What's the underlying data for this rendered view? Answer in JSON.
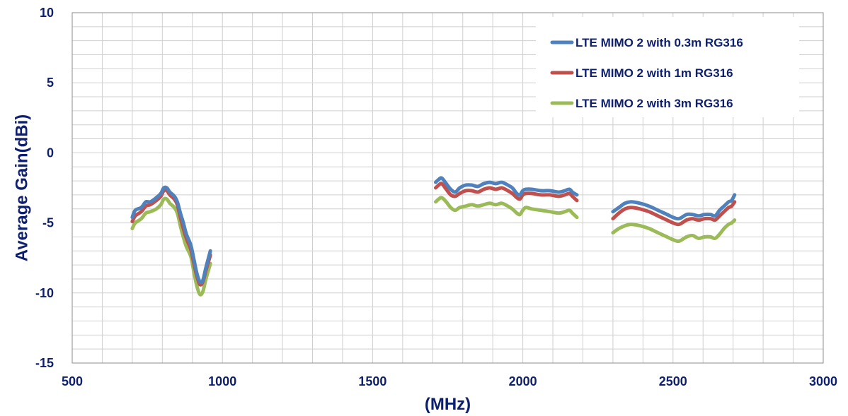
{
  "chart_data": {
    "type": "line",
    "xlabel": "(MHz)",
    "ylabel": "Average Gain(dBi)",
    "xlim": [
      500,
      3000
    ],
    "ylim": [
      -15,
      10
    ],
    "x_ticks": [
      500,
      1000,
      1500,
      2000,
      2500,
      3000
    ],
    "y_ticks": [
      -15,
      -10,
      -5,
      0,
      5,
      10
    ],
    "x_minor_step": 100,
    "y_minor_step": 1,
    "grid": true,
    "legend_position": "top-right",
    "series": [
      {
        "name": "LTE MIMO 2 with 0.3m RG316",
        "color": "#4f81bd",
        "segments": [
          [
            [
              700,
              -4.6
            ],
            [
              710,
              -4.1
            ],
            [
              730,
              -3.9
            ],
            [
              745,
              -3.5
            ],
            [
              760,
              -3.5
            ],
            [
              780,
              -3.2
            ],
            [
              795,
              -2.9
            ],
            [
              805,
              -2.5
            ],
            [
              815,
              -2.5
            ],
            [
              825,
              -2.8
            ],
            [
              840,
              -3.1
            ],
            [
              850,
              -3.5
            ],
            [
              860,
              -4.3
            ],
            [
              870,
              -5.0
            ],
            [
              880,
              -5.8
            ],
            [
              895,
              -6.6
            ],
            [
              905,
              -7.6
            ],
            [
              915,
              -8.6
            ],
            [
              925,
              -9.2
            ],
            [
              935,
              -9.1
            ],
            [
              945,
              -8.2
            ],
            [
              960,
              -7.0
            ]
          ],
          [
            [
              1710,
              -2.1
            ],
            [
              1720,
              -1.9
            ],
            [
              1730,
              -1.8
            ],
            [
              1745,
              -2.2
            ],
            [
              1760,
              -2.6
            ],
            [
              1775,
              -2.8
            ],
            [
              1790,
              -2.5
            ],
            [
              1810,
              -2.3
            ],
            [
              1830,
              -2.3
            ],
            [
              1850,
              -2.4
            ],
            [
              1870,
              -2.2
            ],
            [
              1890,
              -2.1
            ],
            [
              1910,
              -2.2
            ],
            [
              1930,
              -2.1
            ],
            [
              1950,
              -2.3
            ],
            [
              1965,
              -2.5
            ],
            [
              1980,
              -2.9
            ],
            [
              1990,
              -3.0
            ],
            [
              2000,
              -2.7
            ],
            [
              2010,
              -2.6
            ],
            [
              2030,
              -2.6
            ],
            [
              2060,
              -2.7
            ],
            [
              2090,
              -2.7
            ],
            [
              2120,
              -2.8
            ],
            [
              2140,
              -2.7
            ],
            [
              2155,
              -2.6
            ],
            [
              2165,
              -2.8
            ],
            [
              2180,
              -3.0
            ]
          ],
          [
            [
              2300,
              -4.2
            ],
            [
              2320,
              -3.9
            ],
            [
              2340,
              -3.6
            ],
            [
              2360,
              -3.5
            ],
            [
              2390,
              -3.6
            ],
            [
              2420,
              -3.8
            ],
            [
              2450,
              -4.1
            ],
            [
              2480,
              -4.4
            ],
            [
              2500,
              -4.6
            ],
            [
              2520,
              -4.7
            ],
            [
              2545,
              -4.4
            ],
            [
              2565,
              -4.4
            ],
            [
              2585,
              -4.5
            ],
            [
              2605,
              -4.4
            ],
            [
              2625,
              -4.4
            ],
            [
              2640,
              -4.5
            ],
            [
              2655,
              -4.1
            ],
            [
              2670,
              -3.8
            ],
            [
              2685,
              -3.5
            ],
            [
              2695,
              -3.4
            ],
            [
              2705,
              -3.0
            ]
          ]
        ]
      },
      {
        "name": "LTE MIMO 2 with 1m RG316",
        "color": "#c0504d",
        "segments": [
          [
            [
              700,
              -4.9
            ],
            [
              710,
              -4.5
            ],
            [
              730,
              -4.2
            ],
            [
              745,
              -3.8
            ],
            [
              760,
              -3.7
            ],
            [
              780,
              -3.4
            ],
            [
              795,
              -3.1
            ],
            [
              805,
              -2.7
            ],
            [
              815,
              -2.7
            ],
            [
              825,
              -3.0
            ],
            [
              840,
              -3.3
            ],
            [
              850,
              -3.7
            ],
            [
              860,
              -4.6
            ],
            [
              870,
              -5.4
            ],
            [
              880,
              -6.1
            ],
            [
              895,
              -6.9
            ],
            [
              905,
              -7.9
            ],
            [
              915,
              -8.8
            ],
            [
              925,
              -9.4
            ],
            [
              935,
              -9.2
            ],
            [
              945,
              -8.4
            ],
            [
              960,
              -7.3
            ]
          ],
          [
            [
              1710,
              -2.5
            ],
            [
              1720,
              -2.3
            ],
            [
              1730,
              -2.2
            ],
            [
              1745,
              -2.6
            ],
            [
              1760,
              -3.0
            ],
            [
              1775,
              -3.1
            ],
            [
              1790,
              -2.9
            ],
            [
              1810,
              -2.7
            ],
            [
              1830,
              -2.7
            ],
            [
              1850,
              -2.8
            ],
            [
              1870,
              -2.6
            ],
            [
              1890,
              -2.5
            ],
            [
              1910,
              -2.6
            ],
            [
              1930,
              -2.5
            ],
            [
              1950,
              -2.7
            ],
            [
              1965,
              -2.9
            ],
            [
              1980,
              -3.2
            ],
            [
              1990,
              -3.3
            ],
            [
              2000,
              -3.0
            ],
            [
              2010,
              -2.9
            ],
            [
              2030,
              -2.9
            ],
            [
              2060,
              -3.0
            ],
            [
              2090,
              -3.0
            ],
            [
              2120,
              -3.1
            ],
            [
              2140,
              -3.0
            ],
            [
              2155,
              -2.9
            ],
            [
              2165,
              -3.1
            ],
            [
              2180,
              -3.4
            ]
          ],
          [
            [
              2300,
              -4.7
            ],
            [
              2320,
              -4.3
            ],
            [
              2340,
              -4.0
            ],
            [
              2360,
              -3.9
            ],
            [
              2390,
              -4.0
            ],
            [
              2420,
              -4.2
            ],
            [
              2450,
              -4.5
            ],
            [
              2480,
              -4.8
            ],
            [
              2500,
              -5.0
            ],
            [
              2520,
              -5.1
            ],
            [
              2545,
              -4.8
            ],
            [
              2565,
              -4.7
            ],
            [
              2585,
              -4.8
            ],
            [
              2605,
              -4.7
            ],
            [
              2625,
              -4.7
            ],
            [
              2640,
              -4.8
            ],
            [
              2655,
              -4.5
            ],
            [
              2670,
              -4.2
            ],
            [
              2685,
              -3.9
            ],
            [
              2695,
              -3.8
            ],
            [
              2705,
              -3.5
            ]
          ]
        ]
      },
      {
        "name": "LTE MIMO 2 with 3m RG316",
        "color": "#9bbb59",
        "segments": [
          [
            [
              700,
              -5.4
            ],
            [
              710,
              -5.0
            ],
            [
              730,
              -4.7
            ],
            [
              745,
              -4.3
            ],
            [
              760,
              -4.2
            ],
            [
              780,
              -4.0
            ],
            [
              795,
              -3.7
            ],
            [
              805,
              -3.3
            ],
            [
              815,
              -3.3
            ],
            [
              825,
              -3.6
            ],
            [
              840,
              -3.9
            ],
            [
              850,
              -4.3
            ],
            [
              860,
              -5.2
            ],
            [
              870,
              -6.0
            ],
            [
              880,
              -6.7
            ],
            [
              895,
              -7.4
            ],
            [
              905,
              -8.5
            ],
            [
              915,
              -9.5
            ],
            [
              925,
              -10.1
            ],
            [
              935,
              -9.9
            ],
            [
              945,
              -9.0
            ],
            [
              960,
              -7.9
            ]
          ],
          [
            [
              1710,
              -3.5
            ],
            [
              1720,
              -3.3
            ],
            [
              1730,
              -3.2
            ],
            [
              1745,
              -3.5
            ],
            [
              1760,
              -3.9
            ],
            [
              1775,
              -4.1
            ],
            [
              1790,
              -3.9
            ],
            [
              1810,
              -3.8
            ],
            [
              1830,
              -3.7
            ],
            [
              1850,
              -3.8
            ],
            [
              1870,
              -3.7
            ],
            [
              1890,
              -3.6
            ],
            [
              1910,
              -3.7
            ],
            [
              1930,
              -3.6
            ],
            [
              1950,
              -3.8
            ],
            [
              1965,
              -4.0
            ],
            [
              1980,
              -4.3
            ],
            [
              1990,
              -4.4
            ],
            [
              2000,
              -4.1
            ],
            [
              2010,
              -3.9
            ],
            [
              2030,
              -4.0
            ],
            [
              2060,
              -4.1
            ],
            [
              2090,
              -4.2
            ],
            [
              2120,
              -4.3
            ],
            [
              2140,
              -4.2
            ],
            [
              2155,
              -4.1
            ],
            [
              2165,
              -4.3
            ],
            [
              2180,
              -4.6
            ]
          ],
          [
            [
              2300,
              -5.7
            ],
            [
              2320,
              -5.4
            ],
            [
              2340,
              -5.2
            ],
            [
              2360,
              -5.1
            ],
            [
              2390,
              -5.2
            ],
            [
              2420,
              -5.4
            ],
            [
              2450,
              -5.7
            ],
            [
              2480,
              -6.0
            ],
            [
              2500,
              -6.2
            ],
            [
              2520,
              -6.3
            ],
            [
              2545,
              -6.0
            ],
            [
              2565,
              -5.9
            ],
            [
              2585,
              -6.1
            ],
            [
              2605,
              -6.0
            ],
            [
              2625,
              -6.0
            ],
            [
              2640,
              -6.1
            ],
            [
              2655,
              -5.8
            ],
            [
              2670,
              -5.4
            ],
            [
              2685,
              -5.1
            ],
            [
              2695,
              -5.0
            ],
            [
              2705,
              -4.8
            ]
          ]
        ]
      }
    ]
  }
}
